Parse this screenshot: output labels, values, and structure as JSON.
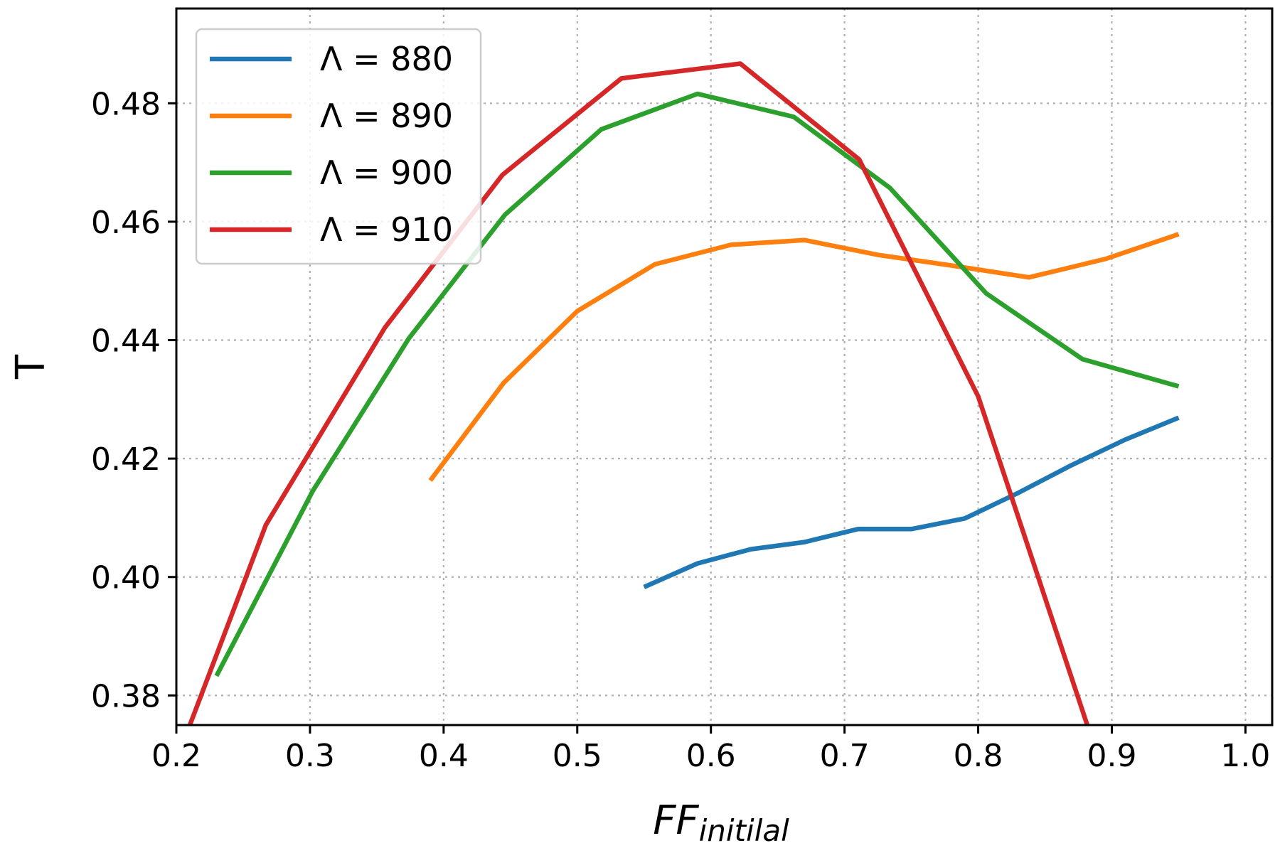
{
  "chart_data": {
    "type": "line",
    "xlabel": "FF",
    "xlabel_sub": "initilal",
    "ylabel": "T",
    "xlim": [
      0.2,
      1.02
    ],
    "ylim": [
      0.375,
      0.496
    ],
    "xticks": [
      {
        "value": 0.2,
        "label": "0.2"
      },
      {
        "value": 0.3,
        "label": "0.3"
      },
      {
        "value": 0.4,
        "label": "0.4"
      },
      {
        "value": 0.5,
        "label": "0.5"
      },
      {
        "value": 0.6,
        "label": "0.6"
      },
      {
        "value": 0.7,
        "label": "0.7"
      },
      {
        "value": 0.8,
        "label": "0.8"
      },
      {
        "value": 0.9,
        "label": "0.9"
      },
      {
        "value": 1.0,
        "label": "1.0"
      }
    ],
    "yticks": [
      {
        "value": 0.38,
        "label": "0.38"
      },
      {
        "value": 0.4,
        "label": "0.40"
      },
      {
        "value": 0.42,
        "label": "0.42"
      },
      {
        "value": 0.44,
        "label": "0.44"
      },
      {
        "value": 0.46,
        "label": "0.46"
      },
      {
        "value": 0.48,
        "label": "0.48"
      }
    ],
    "grid": true,
    "legend_position": "top-left",
    "series": [
      {
        "name": "Λ = 880",
        "color": "#1f77b4",
        "x": [
          0.55,
          0.59,
          0.63,
          0.67,
          0.71,
          0.75,
          0.79,
          0.83,
          0.87,
          0.91,
          0.95
        ],
        "y": [
          0.3983,
          0.4023,
          0.4047,
          0.4059,
          0.4081,
          0.4081,
          0.4099,
          0.4142,
          0.4189,
          0.4232,
          0.4269
        ]
      },
      {
        "name": "Λ = 890",
        "color": "#ff7f0e",
        "x": [
          0.39,
          0.445,
          0.5,
          0.558,
          0.615,
          0.67,
          0.725,
          0.78,
          0.838,
          0.895,
          0.95
        ],
        "y": [
          0.4163,
          0.4328,
          0.4449,
          0.4528,
          0.4561,
          0.4569,
          0.4544,
          0.4526,
          0.4506,
          0.4537,
          0.4579
        ]
      },
      {
        "name": "Λ = 900",
        "color": "#2ca02c",
        "x": [
          0.23,
          0.302,
          0.374,
          0.446,
          0.518,
          0.59,
          0.662,
          0.734,
          0.806,
          0.878,
          0.95
        ],
        "y": [
          0.3833,
          0.4145,
          0.4403,
          0.4612,
          0.4756,
          0.4816,
          0.4777,
          0.4657,
          0.4479,
          0.4368,
          0.4322
        ]
      },
      {
        "name": "Λ = 910",
        "color": "#d62728",
        "x": [
          0.2,
          0.267,
          0.356,
          0.444,
          0.533,
          0.622,
          0.711,
          0.8,
          0.889
        ],
        "y": [
          0.369,
          0.4088,
          0.4421,
          0.4679,
          0.4842,
          0.4867,
          0.4705,
          0.4305,
          0.37
        ]
      }
    ]
  }
}
